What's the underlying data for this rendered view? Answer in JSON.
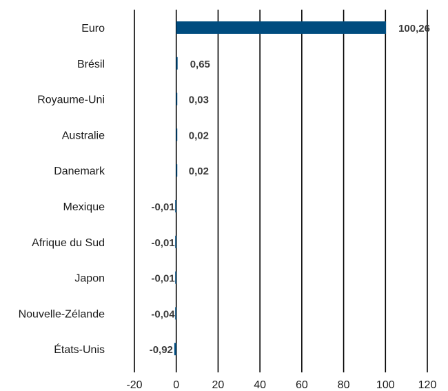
{
  "chart_data": {
    "type": "bar",
    "orientation": "horizontal",
    "categories": [
      "Euro",
      "Brésil",
      "Royaume-Uni",
      "Australie",
      "Danemark",
      "Mexique",
      "Afrique du Sud",
      "Japon",
      "Nouvelle-Zélande",
      "États-Unis"
    ],
    "values": [
      100.26,
      0.65,
      0.03,
      0.02,
      0.02,
      -0.01,
      -0.01,
      -0.01,
      -0.04,
      -0.92
    ],
    "value_labels": [
      "100,26",
      "0,65",
      "0,03",
      "0,02",
      "0,02",
      "-0,01",
      "-0,01",
      "-0,01",
      "-0,04",
      "-0,92"
    ],
    "xlim": [
      -20,
      120
    ],
    "x_ticks": [
      -20,
      0,
      20,
      40,
      60,
      80,
      100,
      120
    ],
    "x_tick_labels": [
      "-20",
      "0",
      "20",
      "40",
      "60",
      "80",
      "100",
      "120"
    ],
    "grid": true,
    "bar_color": "#004c7f",
    "title": "",
    "xlabel": "",
    "ylabel": ""
  }
}
